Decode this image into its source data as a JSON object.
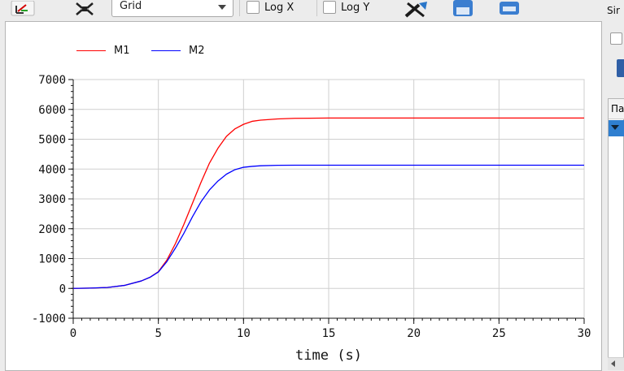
{
  "toolbar": {
    "combo_value": "Grid",
    "log_x_label": "Log X",
    "log_y_label": "Log Y",
    "icons": [
      "fit-zoom-icon",
      "zoom-in-icon",
      "setup-icon",
      "export-icon",
      "print-icon"
    ]
  },
  "right_panel": {
    "label_fragment": "Sir",
    "table_header_fragment": "Па"
  },
  "chart_data": {
    "type": "line",
    "xlabel": "time (s)",
    "ylabel": "",
    "xlim": [
      0,
      30
    ],
    "ylim": [
      -1000,
      7000
    ],
    "x_ticks": [
      "0",
      "5",
      "10",
      "15",
      "20",
      "25",
      "30"
    ],
    "y_ticks": [
      "-1000",
      "0",
      "1000",
      "2000",
      "3000",
      "4000",
      "5000",
      "6000",
      "7000"
    ],
    "grid": true,
    "legend_position": "top-left",
    "series": [
      {
        "name": "M1",
        "color": "#ff0000",
        "x": [
          0,
          1,
          2,
          3,
          4,
          4.5,
          5,
          5.5,
          6,
          6.5,
          7,
          7.5,
          8,
          8.5,
          9,
          9.5,
          10,
          10.5,
          11,
          12,
          13,
          15,
          20,
          25,
          30
        ],
        "y": [
          0,
          10,
          30,
          100,
          250,
          370,
          560,
          950,
          1500,
          2150,
          2850,
          3550,
          4200,
          4700,
          5100,
          5350,
          5500,
          5600,
          5640,
          5680,
          5700,
          5710,
          5710,
          5710,
          5710
        ]
      },
      {
        "name": "M2",
        "color": "#0000ff",
        "x": [
          0,
          1,
          2,
          3,
          4,
          4.5,
          5,
          5.5,
          6,
          6.5,
          7,
          7.5,
          8,
          8.5,
          9,
          9.5,
          10,
          10.5,
          11,
          12,
          13,
          15,
          20,
          25,
          30
        ],
        "y": [
          0,
          10,
          30,
          100,
          250,
          370,
          550,
          900,
          1350,
          1850,
          2400,
          2900,
          3300,
          3600,
          3830,
          3980,
          4060,
          4090,
          4110,
          4125,
          4130,
          4130,
          4130,
          4130,
          4130
        ]
      }
    ]
  }
}
